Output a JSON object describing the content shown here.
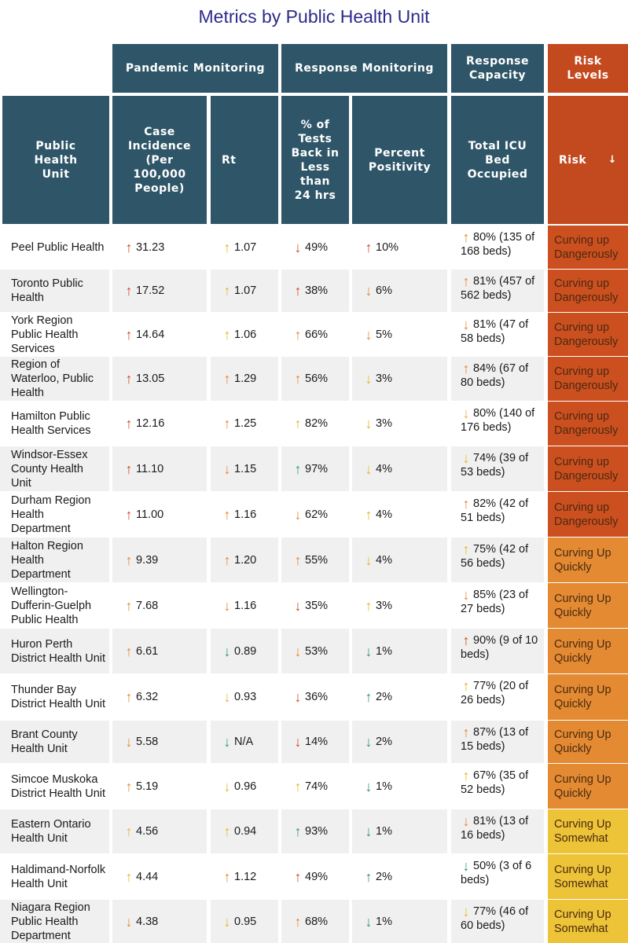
{
  "title": "Metrics by Public Health Unit",
  "groups": {
    "pandemic": "Pandemic Monitoring",
    "response": "Response Monitoring",
    "capacity": "Response Capacity",
    "risk": "Risk Levels"
  },
  "columns": {
    "unit": "Public Health Unit",
    "incidence": "Case Incidence (Per 100,000 People)",
    "rt": "Rt",
    "tests": "% of Tests Back in Less than 24 hrs",
    "positivity": "Percent Positivity",
    "icu": "Total ICU Bed Occupied",
    "risk": "Risk",
    "sort_icon": "↓"
  },
  "colors": {
    "header": "#2f5668",
    "risk_header": "#c34a1f",
    "dangerously": "#cc4f20",
    "quickly": "#e38a33",
    "somewhat": "#edc338",
    "row_shade": "#f0f0f0"
  },
  "chart_data": {
    "type": "table",
    "title": "Metrics by Public Health Unit",
    "rows": [
      {
        "unit": "Peel Public Health",
        "incidence": "31.23",
        "incidence_arrow": "up-red",
        "rt": "1.07",
        "rt_arrow": "up-yellow",
        "tests": "49%",
        "tests_arrow": "down-red",
        "positivity": "10%",
        "positivity_arrow": "up-red",
        "icu": "80% (135 of 168 beds)",
        "icu_arrow": "up-orange",
        "risk": "Curving up Dangerously",
        "risk_level": "dangerously"
      },
      {
        "unit": "Toronto Public Health",
        "incidence": "17.52",
        "incidence_arrow": "up-red",
        "rt": "1.07",
        "rt_arrow": "up-yellow",
        "tests": "38%",
        "tests_arrow": "up-red",
        "positivity": "6%",
        "positivity_arrow": "down-orange",
        "icu": "81% (457 of 562 beds)",
        "icu_arrow": "up-orange",
        "risk": "Curving up Dangerously",
        "risk_level": "dangerously"
      },
      {
        "unit": "York Region Public Health Services",
        "incidence": "14.64",
        "incidence_arrow": "up-red",
        "rt": "1.06",
        "rt_arrow": "up-yellow",
        "tests": "66%",
        "tests_arrow": "up-orange",
        "positivity": "5%",
        "positivity_arrow": "down-orange",
        "icu": "81% (47 of 58 beds)",
        "icu_arrow": "down-orange",
        "risk": "Curving up Dangerously",
        "risk_level": "dangerously"
      },
      {
        "unit": "Region of Waterloo, Public Health",
        "incidence": "13.05",
        "incidence_arrow": "up-red",
        "rt": "1.29",
        "rt_arrow": "up-orange",
        "tests": "56%",
        "tests_arrow": "up-orange",
        "positivity": "3%",
        "positivity_arrow": "down-yellow",
        "icu": "84% (67 of 80 beds)",
        "icu_arrow": "up-orange",
        "risk": "Curving up Dangerously",
        "risk_level": "dangerously"
      },
      {
        "unit": "Hamilton Public Health Services",
        "incidence": "12.16",
        "incidence_arrow": "up-red",
        "rt": "1.25",
        "rt_arrow": "up-orange",
        "tests": "82%",
        "tests_arrow": "up-yellow",
        "positivity": "3%",
        "positivity_arrow": "down-yellow",
        "icu": "80% (140 of 176 beds)",
        "icu_arrow": "down-yellow",
        "risk": "Curving up Dangerously",
        "risk_level": "dangerously"
      },
      {
        "unit": "Windsor-Essex County Health Unit",
        "incidence": "11.10",
        "incidence_arrow": "up-red",
        "rt": "1.15",
        "rt_arrow": "down-orange",
        "tests": "97%",
        "tests_arrow": "up-green",
        "positivity": "4%",
        "positivity_arrow": "down-yellow",
        "icu": "74% (39 of 53 beds)",
        "icu_arrow": "down-yellow",
        "risk": "Curving up Dangerously",
        "risk_level": "dangerously"
      },
      {
        "unit": "Durham Region Health Department",
        "incidence": "11.00",
        "incidence_arrow": "up-red",
        "rt": "1.16",
        "rt_arrow": "up-orange",
        "tests": "62%",
        "tests_arrow": "down-orange",
        "positivity": "4%",
        "positivity_arrow": "up-yellow",
        "icu": "82% (42 of 51 beds)",
        "icu_arrow": "up-orange",
        "risk": "Curving up Dangerously",
        "risk_level": "dangerously"
      },
      {
        "unit": "Halton Region Health Department",
        "incidence": "9.39",
        "incidence_arrow": "up-orange",
        "rt": "1.20",
        "rt_arrow": "up-orange",
        "tests": "55%",
        "tests_arrow": "up-orange",
        "positivity": "4%",
        "positivity_arrow": "down-yellow",
        "icu": "75% (42 of 56 beds)",
        "icu_arrow": "up-yellow",
        "risk": "Curving Up Quickly",
        "risk_level": "quickly"
      },
      {
        "unit": "Wellington-Dufferin-Guelph Public Health",
        "incidence": "7.68",
        "incidence_arrow": "up-orange",
        "rt": "1.16",
        "rt_arrow": "down-orange",
        "tests": "35%",
        "tests_arrow": "down-red",
        "positivity": "3%",
        "positivity_arrow": "up-yellow",
        "icu": "85% (23 of 27 beds)",
        "icu_arrow": "down-orange",
        "risk": "Curving Up Quickly",
        "risk_level": "quickly"
      },
      {
        "unit": "Huron Perth District Health Unit",
        "incidence": "6.61",
        "incidence_arrow": "up-orange",
        "rt": "0.89",
        "rt_arrow": "down-green",
        "tests": "53%",
        "tests_arrow": "down-orange",
        "positivity": "1%",
        "positivity_arrow": "down-green",
        "icu": "90% (9 of 10 beds)",
        "icu_arrow": "up-red",
        "risk": "Curving Up Quickly",
        "risk_level": "quickly"
      },
      {
        "unit": "Thunder Bay District Health Unit",
        "incidence": "6.32",
        "incidence_arrow": "up-orange",
        "rt": "0.93",
        "rt_arrow": "down-yellow",
        "tests": "36%",
        "tests_arrow": "down-red",
        "positivity": "2%",
        "positivity_arrow": "up-green",
        "icu": "77% (20 of 26 beds)",
        "icu_arrow": "up-yellow",
        "risk": "Curving Up Quickly",
        "risk_level": "quickly"
      },
      {
        "unit": "Brant County Health Unit",
        "incidence": "5.58",
        "incidence_arrow": "down-orange",
        "rt": "N/A",
        "rt_arrow": "down-green",
        "tests": "14%",
        "tests_arrow": "down-red",
        "positivity": "2%",
        "positivity_arrow": "down-green",
        "icu": "87% (13 of 15 beds)",
        "icu_arrow": "up-orange",
        "risk": "Curving Up Quickly",
        "risk_level": "quickly"
      },
      {
        "unit": "Simcoe Muskoka District Health Unit",
        "incidence": "5.19",
        "incidence_arrow": "up-orange",
        "rt": "0.96",
        "rt_arrow": "down-yellow",
        "tests": "74%",
        "tests_arrow": "up-yellow",
        "positivity": "1%",
        "positivity_arrow": "down-green",
        "icu": "67% (35 of 52 beds)",
        "icu_arrow": "up-yellow",
        "risk": "Curving Up Quickly",
        "risk_level": "quickly"
      },
      {
        "unit": "Eastern Ontario Health Unit",
        "incidence": "4.56",
        "incidence_arrow": "up-yellow",
        "rt": "0.94",
        "rt_arrow": "up-yellow",
        "tests": "93%",
        "tests_arrow": "up-green",
        "positivity": "1%",
        "positivity_arrow": "down-green",
        "icu": "81% (13 of 16 beds)",
        "icu_arrow": "down-orange",
        "risk": "Curving Up Somewhat",
        "risk_level": "somewhat"
      },
      {
        "unit": "Haldimand-Norfolk Health Unit",
        "incidence": "4.44",
        "incidence_arrow": "up-yellow",
        "rt": "1.12",
        "rt_arrow": "up-orange",
        "tests": "49%",
        "tests_arrow": "up-red",
        "positivity": "2%",
        "positivity_arrow": "up-green",
        "icu": "50% (3 of 6 beds)",
        "icu_arrow": "down-green",
        "risk": "Curving Up Somewhat",
        "risk_level": "somewhat"
      },
      {
        "unit": "Niagara Region Public Health Department",
        "incidence": "4.38",
        "incidence_arrow": "down-orange",
        "rt": "0.95",
        "rt_arrow": "down-yellow",
        "tests": "68%",
        "tests_arrow": "up-orange",
        "positivity": "1%",
        "positivity_arrow": "down-green",
        "icu": "77% (46 of 60 beds)",
        "icu_arrow": "down-yellow",
        "risk": "Curving Up Somewhat",
        "risk_level": "somewhat"
      }
    ]
  }
}
